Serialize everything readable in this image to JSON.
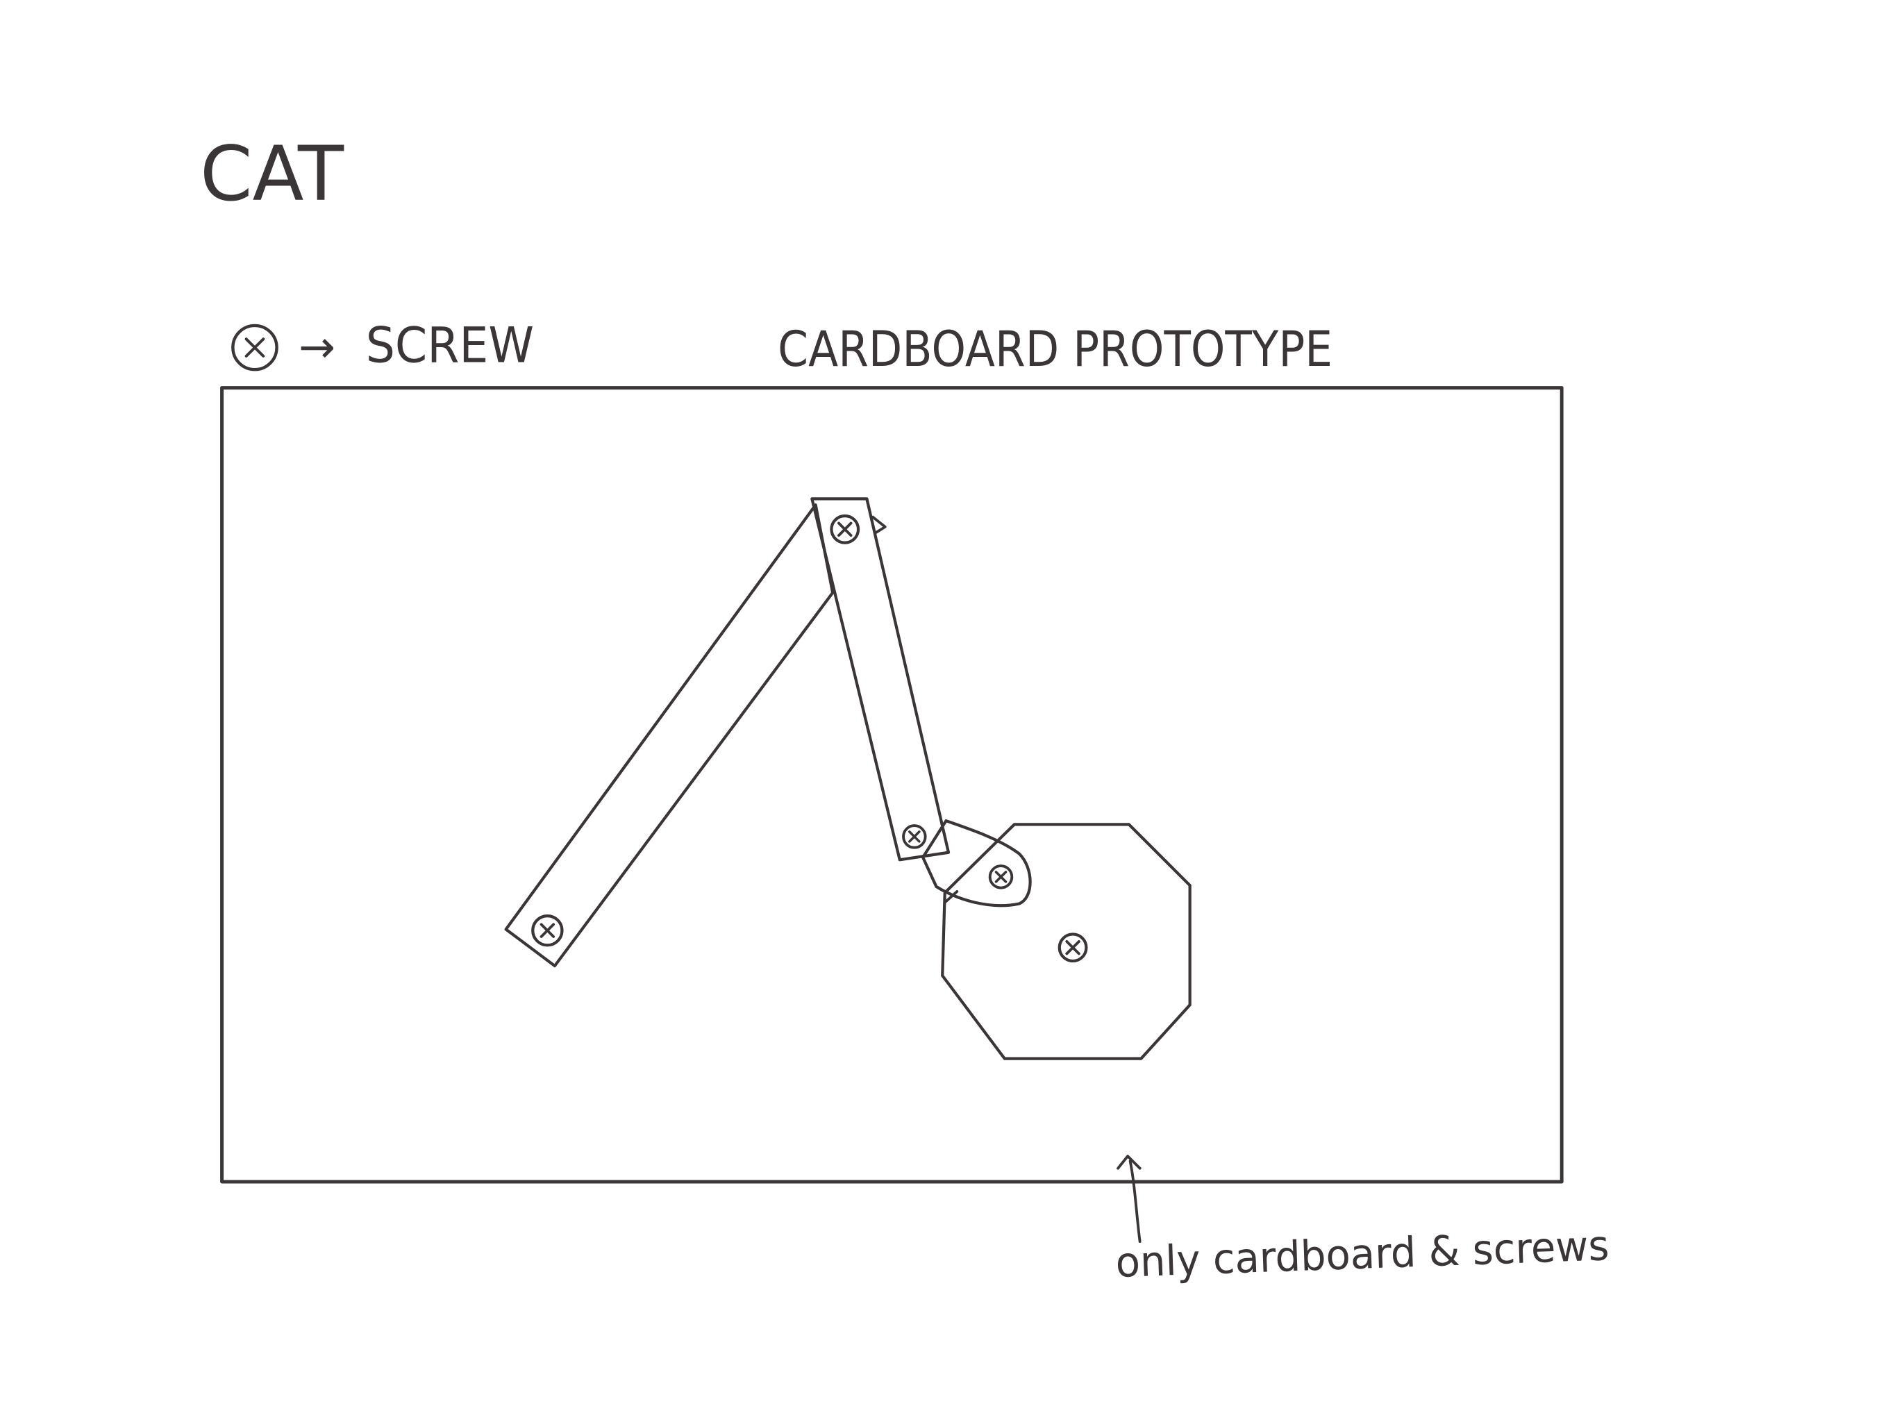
{
  "sketch": {
    "title": "CAT",
    "heading": "CARDBOARD PROTOTYPE",
    "legend": {
      "icon": "screw-icon",
      "arrow": "→",
      "label": "SCREW"
    },
    "annotation": "only cardboard & screws",
    "ink_color": "#3a3536",
    "background": "#ffffff"
  }
}
